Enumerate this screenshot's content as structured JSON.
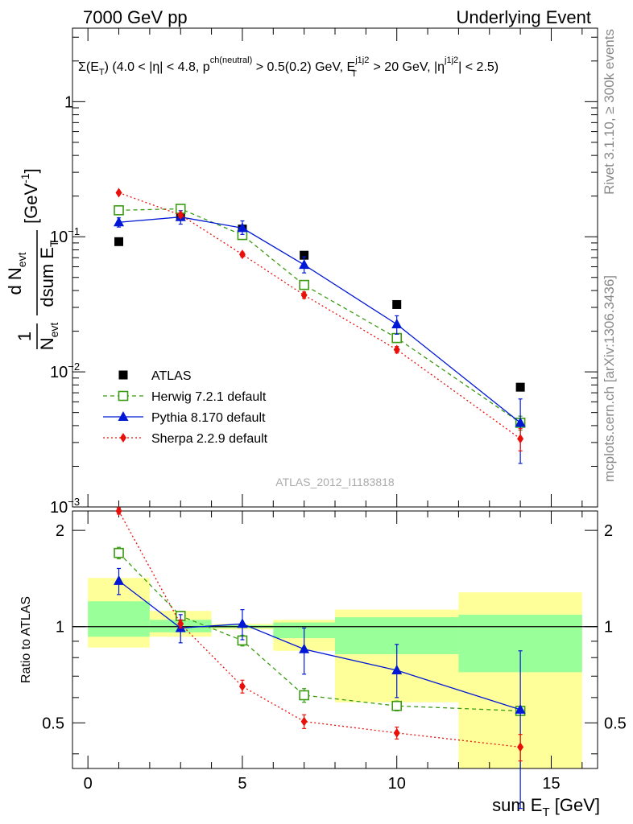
{
  "header": {
    "left": "7000 GeV pp",
    "right": "Underlying Event"
  },
  "side_labels": {
    "rivet": "Rivet 3.1.10, ≥ 300k events",
    "mcplots": "mcplots.cern.ch [arXiv:1306.3436]"
  },
  "colors": {
    "atlas": "#000000",
    "herwig": "#3a9a12",
    "pythia": "#0018d6",
    "sherpa": "#e8100a",
    "band_inner": "#99ff99",
    "band_outer": "#ffff99"
  },
  "chart_data": [
    {
      "type": "scatter",
      "panel": "main",
      "title": "Σ(E_T) (4.0 < |η| < 4.8, p^ch(neutral) > 0.5(0.2) GeV, E_T^j1j2 > 20 GeV, |η^j1j2| < 2.5)",
      "ylabel": "1/N_evt dN_evt/dsum E_T [GeV^-1]",
      "xlabel": "sum E_T [GeV]",
      "yscale": "log",
      "ylim": [
        0.001,
        3.5
      ],
      "xlim": [
        -0.5,
        16.5
      ],
      "watermark": "ATLAS_2012_I1183818",
      "legend_position": "lower-left",
      "x": [
        1,
        3,
        5,
        7,
        10,
        14
      ],
      "series": [
        {
          "name": "ATLAS",
          "values": [
            0.092,
            0.142,
            0.114,
            0.073,
            0.0315,
            0.0077
          ]
        },
        {
          "name": "Herwig 7.2.1 default",
          "values": [
            0.157,
            0.161,
            0.103,
            0.044,
            0.0178,
            0.0042
          ],
          "err_lo": [
            0.15,
            0.154,
            0.097,
            0.041,
            0.0165,
            0.0037
          ],
          "err_hi": [
            0.164,
            0.168,
            0.109,
            0.047,
            0.0191,
            0.0047
          ]
        },
        {
          "name": "Pythia 8.170 default",
          "values": [
            0.128,
            0.14,
            0.116,
            0.062,
            0.0225,
            0.0042
          ],
          "err_lo": [
            0.118,
            0.124,
            0.104,
            0.054,
            0.019,
            0.0021
          ],
          "err_hi": [
            0.138,
            0.156,
            0.131,
            0.071,
            0.026,
            0.0063
          ]
        },
        {
          "name": "Sherpa 2.2.9 default",
          "values": [
            0.212,
            0.145,
            0.074,
            0.037,
            0.0146,
            0.0032
          ],
          "err_lo": [
            0.207,
            0.14,
            0.071,
            0.035,
            0.0138,
            0.0026
          ],
          "err_hi": [
            0.217,
            0.15,
            0.077,
            0.039,
            0.0154,
            0.0038
          ]
        }
      ],
      "yticks": [
        {
          "value": 1,
          "label": "1"
        },
        {
          "value": 0.1,
          "label": "10",
          "exp": "−1"
        },
        {
          "value": 0.01,
          "label": "10",
          "exp": "−2"
        },
        {
          "value": 0.001,
          "label": "10",
          "exp": "−3"
        }
      ]
    },
    {
      "type": "line",
      "panel": "ratio",
      "ylabel": "Ratio to ATLAS",
      "xlabel": "sum E_T [GeV]",
      "ylim": [
        0.36,
        2.3
      ],
      "xlim": [
        -0.5,
        16.5
      ],
      "yticks": [
        0.5,
        1,
        2
      ],
      "xticks": [
        0,
        5,
        10,
        15
      ],
      "x": [
        1,
        3,
        5,
        7,
        10,
        14
      ],
      "bands": [
        {
          "x0": 0,
          "x1": 2,
          "inner": [
            0.93,
            1.2
          ],
          "outer": [
            0.86,
            1.42
          ]
        },
        {
          "x0": 2,
          "x1": 4,
          "inner": [
            0.96,
            1.05
          ],
          "outer": [
            0.93,
            1.12
          ]
        },
        {
          "x0": 4,
          "x1": 6,
          "inner": [
            0.99,
            1.01
          ],
          "outer": [
            0.98,
            1.02
          ]
        },
        {
          "x0": 6,
          "x1": 8,
          "inner": [
            0.92,
            1.03
          ],
          "outer": [
            0.84,
            1.05
          ]
        },
        {
          "x0": 8,
          "x1": 12,
          "inner": [
            0.82,
            1.07
          ],
          "outer": [
            0.58,
            1.13
          ]
        },
        {
          "x0": 12,
          "x1": 16,
          "inner": [
            0.72,
            1.09
          ],
          "outer": [
            0.36,
            1.28
          ]
        }
      ],
      "series": [
        {
          "name": "Herwig 7.2.1 default",
          "values": [
            1.7,
            1.08,
            0.905,
            0.61,
            0.565,
            0.545
          ],
          "err_lo": [
            1.63,
            1.05,
            0.87,
            0.58,
            0.545,
            0.53
          ],
          "err_hi": [
            1.77,
            1.11,
            0.94,
            0.64,
            0.585,
            0.56
          ]
        },
        {
          "name": "Pythia 8.170 default",
          "values": [
            1.39,
            0.99,
            1.02,
            0.85,
            0.73,
            0.55
          ],
          "err_lo": [
            1.26,
            0.89,
            0.91,
            0.71,
            0.6,
            0.27
          ],
          "err_hi": [
            1.52,
            1.09,
            1.13,
            0.99,
            0.88,
            0.84
          ]
        },
        {
          "name": "Sherpa 2.2.9 default",
          "values": [
            2.3,
            1.02,
            0.65,
            0.505,
            0.465,
            0.42
          ],
          "err_lo": [
            2.25,
            0.99,
            0.62,
            0.48,
            0.445,
            0.38
          ],
          "err_hi": [
            2.35,
            1.05,
            0.68,
            0.53,
            0.485,
            0.46
          ]
        }
      ]
    }
  ]
}
